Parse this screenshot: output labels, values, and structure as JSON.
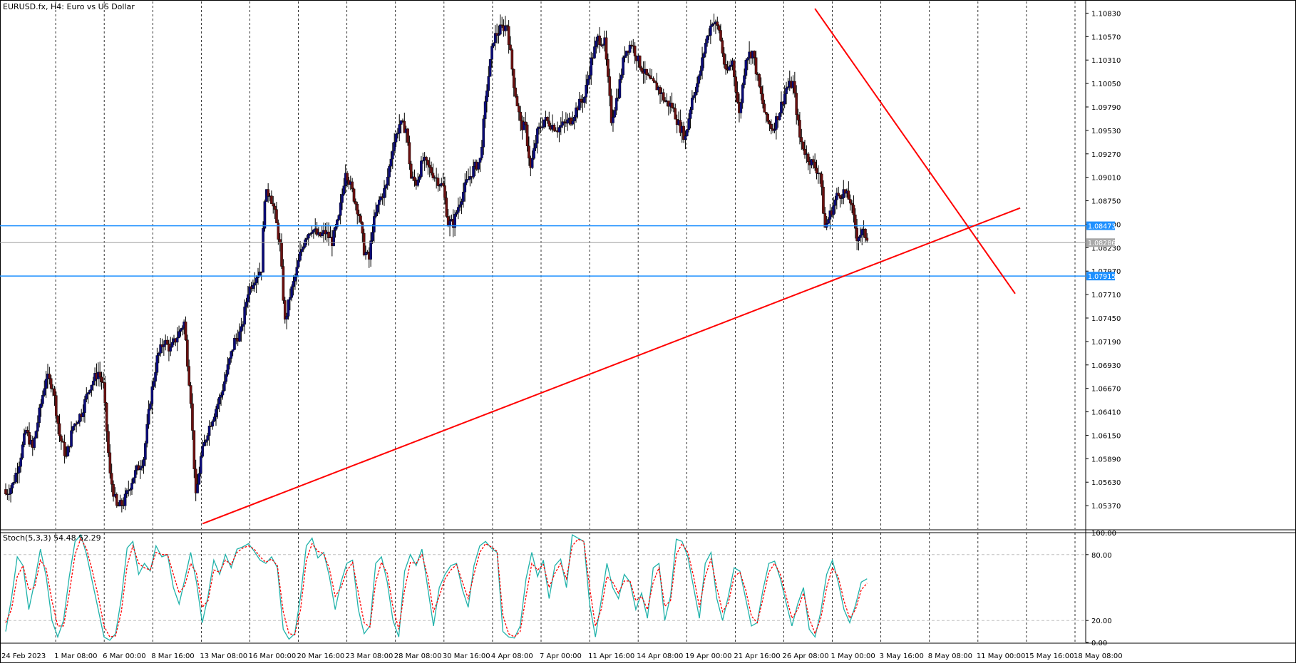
{
  "window": {
    "title": "EURUSD.fx, H4:  Euro vs US Dollar"
  },
  "indicator": {
    "label": "Stoch(5,3,3) 54.48 52.29"
  },
  "colors": {
    "bull_candle": "#0a0a7a",
    "bear_candle": "#6b1010",
    "trendline": "#ff0000",
    "level_line": "#1e90ff",
    "price_line": "#a0a0a0",
    "stoch_main": "#20b2aa",
    "stoch_signal": "#ff0000",
    "grid": "#000000"
  },
  "chart_data": [
    {
      "type": "candlestick",
      "symbol": "EURUSD.fx",
      "timeframe": "H4",
      "ylim": [
        1.0511,
        1.1096
      ],
      "price_ticks": [
        "1.10830",
        "1.10570",
        "1.10310",
        "1.10050",
        "1.09790",
        "1.09530",
        "1.09270",
        "1.09010",
        "1.08750",
        "1.08490",
        "1.08230",
        "1.07970",
        "1.07710",
        "1.07450",
        "1.07190",
        "1.06930",
        "1.06670",
        "1.06410",
        "1.06150",
        "1.05890",
        "1.05630",
        "1.05370"
      ],
      "x_labels": [
        "24 Feb 2023",
        "1 Mar 08:00",
        "6 Mar 00:00",
        "8 Mar 16:00",
        "13 Mar 08:00",
        "16 Mar 00:00",
        "20 Mar 16:00",
        "23 Mar 08:00",
        "28 Mar 08:00",
        "30 Mar 16:00",
        "4 Apr 08:00",
        "7 Apr 00:00",
        "11 Apr 16:00",
        "14 Apr 08:00",
        "19 Apr 00:00",
        "21 Apr 16:00",
        "26 Apr 08:00",
        "1 May 00:00",
        "3 May 16:00",
        "8 May 08:00",
        "11 May 00:00",
        "15 May 16:00",
        "18 May 08:00"
      ],
      "close_path": [
        [
          0,
          1.055
        ],
        [
          4,
          1.056
        ],
        [
          8,
          1.0585
        ],
        [
          12,
          1.062
        ],
        [
          16,
          1.06
        ],
        [
          20,
          1.064
        ],
        [
          24,
          1.068
        ],
        [
          28,
          1.067
        ],
        [
          32,
          1.0615
        ],
        [
          36,
          1.059
        ],
        [
          40,
          1.0625
        ],
        [
          45,
          1.064
        ],
        [
          50,
          1.067
        ],
        [
          55,
          1.0685
        ],
        [
          58,
          1.067
        ],
        [
          62,
          1.057
        ],
        [
          66,
          1.0535
        ],
        [
          70,
          1.054
        ],
        [
          76,
          1.057
        ],
        [
          82,
          1.059
        ],
        [
          86,
          1.0655
        ],
        [
          90,
          1.07
        ],
        [
          94,
          1.072
        ],
        [
          98,
          1.071
        ],
        [
          102,
          1.0725
        ],
        [
          106,
          1.074
        ],
        [
          110,
          1.0655
        ],
        [
          113,
          1.0545
        ],
        [
          116,
          1.059
        ],
        [
          120,
          1.062
        ],
        [
          124,
          1.064
        ],
        [
          128,
          1.066
        ],
        [
          132,
          1.069
        ],
        [
          136,
          1.072
        ],
        [
          140,
          1.073
        ],
        [
          144,
          1.0775
        ],
        [
          148,
          1.079
        ],
        [
          152,
          1.08
        ],
        [
          154,
          1.088
        ],
        [
          157,
          1.0885
        ],
        [
          160,
          1.086
        ],
        [
          163,
          1.0825
        ],
        [
          166,
          1.074
        ],
        [
          169,
          1.077
        ],
        [
          172,
          1.079
        ],
        [
          175,
          1.0815
        ],
        [
          178,
          1.0835
        ],
        [
          182,
          1.0845
        ],
        [
          186,
          1.0835
        ],
        [
          190,
          1.084
        ],
        [
          194,
          1.083
        ],
        [
          198,
          1.0855
        ],
        [
          202,
          1.091
        ],
        [
          206,
          1.0885
        ],
        [
          210,
          1.086
        ],
        [
          213,
          1.082
        ],
        [
          216,
          1.081
        ],
        [
          218,
          1.0845
        ],
        [
          222,
          1.0875
        ],
        [
          226,
          1.089
        ],
        [
          230,
          1.0935
        ],
        [
          234,
          1.096
        ],
        [
          238,
          1.0955
        ],
        [
          241,
          1.09
        ],
        [
          244,
          1.0895
        ],
        [
          248,
          1.092
        ],
        [
          252,
          1.091
        ],
        [
          256,
          1.09
        ],
        [
          260,
          1.089
        ],
        [
          263,
          1.085
        ],
        [
          266,
          1.085
        ],
        [
          270,
          1.0875
        ],
        [
          274,
          1.0895
        ],
        [
          278,
          1.091
        ],
        [
          282,
          1.092
        ],
        [
          286,
          1.1
        ],
        [
          290,
          1.1055
        ],
        [
          294,
          1.1065
        ],
        [
          298,
          1.107
        ],
        [
          302,
          1.1005
        ],
        [
          306,
          1.096
        ],
        [
          309,
          1.0955
        ],
        [
          312,
          1.091
        ],
        [
          316,
          1.095
        ],
        [
          320,
          1.0965
        ],
        [
          324,
          1.096
        ],
        [
          328,
          1.0955
        ],
        [
          332,
          1.096
        ],
        [
          336,
          1.0965
        ],
        [
          340,
          1.098
        ],
        [
          344,
          1.099
        ],
        [
          348,
          1.103
        ],
        [
          352,
          1.1055
        ],
        [
          356,
          1.105
        ],
        [
          360,
          1.0965
        ],
        [
          364,
          1.0995
        ],
        [
          368,
          1.104
        ],
        [
          372,
          1.105
        ],
        [
          376,
          1.103
        ],
        [
          380,
          1.1015
        ],
        [
          384,
          1.1005
        ],
        [
          388,
          1.1
        ],
        [
          392,
          1.0985
        ],
        [
          396,
          1.098
        ],
        [
          400,
          1.096
        ],
        [
          404,
          1.0945
        ],
        [
          408,
          1.099
        ],
        [
          412,
          1.101
        ],
        [
          416,
          1.105
        ],
        [
          420,
          1.1075
        ],
        [
          424,
          1.1065
        ],
        [
          428,
          1.1015
        ],
        [
          432,
          1.103
        ],
        [
          436,
          1.097
        ],
        [
          440,
          1.1035
        ],
        [
          444,
          1.104
        ],
        [
          448,
          1.1
        ],
        [
          452,
          1.0965
        ],
        [
          456,
          1.0955
        ],
        [
          460,
          1.0975
        ],
        [
          464,
          1.1
        ],
        [
          468,
          1.1005
        ],
        [
          472,
          1.0945
        ],
        [
          476,
          1.0925
        ],
        [
          480,
          1.0915
        ],
        [
          484,
          1.0905
        ],
        [
          487,
          1.0845
        ],
        [
          490,
          1.086
        ],
        [
          494,
          1.088
        ],
        [
          498,
          1.0885
        ],
        [
          502,
          1.0875
        ],
        [
          506,
          1.0835
        ],
        [
          509,
          1.084
        ],
        [
          512,
          1.0835
        ]
      ],
      "levels": [
        {
          "label": "1.08473",
          "value": 1.08473,
          "role": "horizontal-line"
        },
        {
          "label": "1.07915",
          "value": 1.07915,
          "role": "horizontal-line"
        }
      ],
      "current_price": {
        "label": "1.08286",
        "value": 1.08286
      },
      "trendlines": [
        {
          "name": "support",
          "from": [
            117,
            1.0517
          ],
          "to": [
            603,
            1.0867
          ]
        },
        {
          "name": "resistance",
          "from": [
            481,
            1.1088
          ],
          "to": [
            600,
            1.0772
          ]
        }
      ]
    },
    {
      "type": "line",
      "name": "Stoch(5,3,3)",
      "ylim": [
        0,
        100
      ],
      "y_ticks": [
        "100.00",
        "80.00",
        "20.00",
        "0.00"
      ],
      "series": [
        {
          "name": "main",
          "values": [
            10,
            40,
            78,
            70,
            30,
            55,
            85,
            60,
            20,
            5,
            20,
            60,
            92,
            98,
            80,
            55,
            30,
            5,
            2,
            8,
            40,
            86,
            92,
            62,
            72,
            65,
            88,
            78,
            80,
            50,
            35,
            58,
            82,
            55,
            18,
            42,
            75,
            62,
            80,
            68,
            85,
            87,
            90,
            83,
            75,
            72,
            78,
            68,
            12,
            3,
            8,
            42,
            88,
            95,
            77,
            82,
            60,
            30,
            55,
            72,
            75,
            30,
            8,
            15,
            72,
            78,
            55,
            20,
            5,
            65,
            80,
            70,
            85,
            50,
            15,
            50,
            62,
            70,
            72,
            48,
            32,
            70,
            88,
            92,
            86,
            82,
            10,
            5,
            4,
            15,
            58,
            82,
            60,
            75,
            40,
            70,
            76,
            50,
            98,
            95,
            92,
            35,
            5,
            38,
            72,
            50,
            40,
            62,
            55,
            30,
            45,
            22,
            68,
            72,
            20,
            42,
            94,
            92,
            78,
            50,
            22,
            72,
            82,
            40,
            20,
            42,
            68,
            65,
            40,
            15,
            18,
            48,
            72,
            74,
            58,
            36,
            15,
            35,
            50,
            12,
            5,
            28,
            62,
            75,
            55,
            30,
            18,
            34,
            55,
            58
          ]
        },
        {
          "name": "signal",
          "values": [
            18,
            30,
            60,
            70,
            48,
            50,
            75,
            67,
            38,
            15,
            15,
            45,
            80,
            95,
            85,
            65,
            42,
            15,
            5,
            6,
            28,
            70,
            88,
            72,
            68,
            66,
            82,
            80,
            80,
            62,
            45,
            52,
            72,
            63,
            32,
            38,
            66,
            64,
            75,
            71,
            82,
            86,
            88,
            85,
            78,
            73,
            76,
            70,
            28,
            8,
            7,
            30,
            75,
            90,
            83,
            81,
            67,
            42,
            50,
            65,
            73,
            45,
            18,
            14,
            55,
            73,
            63,
            32,
            12,
            48,
            73,
            72,
            80,
            60,
            28,
            42,
            58,
            66,
            71,
            55,
            40,
            62,
            82,
            90,
            87,
            83,
            25,
            8,
            5,
            10,
            42,
            72,
            66,
            71,
            50,
            63,
            72,
            58,
            88,
            94,
            92,
            50,
            15,
            30,
            60,
            55,
            45,
            56,
            56,
            38,
            42,
            30,
            55,
            68,
            33,
            38,
            80,
            90,
            82,
            60,
            32,
            60,
            76,
            50,
            28,
            36,
            60,
            64,
            48,
            24,
            18,
            40,
            64,
            72,
            62,
            42,
            22,
            30,
            45,
            22,
            8,
            22,
            50,
            68,
            60,
            38,
            22,
            30,
            48,
            54
          ]
        }
      ]
    }
  ]
}
